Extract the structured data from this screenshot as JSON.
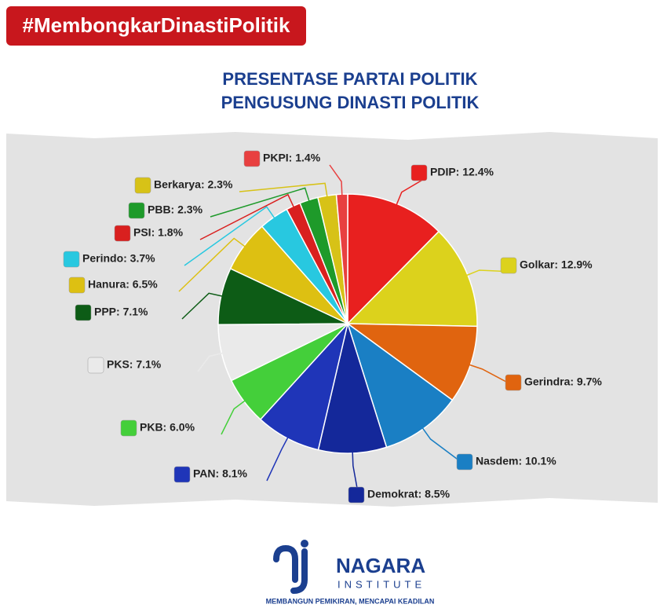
{
  "header": "#MembongkarDinastiPolitik",
  "chart_data": {
    "type": "pie",
    "title": [
      "PRESENTASE PARTAI POLITIK",
      "PENGUSUNG DINASTI POLITIK"
    ],
    "values": [
      12.4,
      12.9,
      9.7,
      10.1,
      8.5,
      8.1,
      6.0,
      7.1,
      7.1,
      6.5,
      3.7,
      1.8,
      2.3,
      2.3,
      1.4
    ],
    "value_labels": [
      "PDIP: 12.4%",
      "Golkar: 12.9%",
      "Gerindra: 9.7%",
      "Nasdem: 10.1%",
      "Demokrat: 8.5%",
      "PAN: 8.1%",
      "PKB: 6.0%",
      "PKS: 7.1%",
      "PPP: 7.1%",
      "Hanura: 6.5%",
      "Perindo: 3.7%",
      "PSI: 1.8%",
      "PBB: 2.3%",
      "Berkarya: 2.3%",
      "PKPI: 1.4%"
    ],
    "colors": [
      "#e8201f",
      "#dcd21c",
      "#e0640f",
      "#1a7fc4",
      "#14289a",
      "#1f35b8",
      "#44cf3a",
      "#eaeaea",
      "#0d5c16",
      "#ddc012",
      "#28c8e0",
      "#d9201f",
      "#1e9a2a",
      "#d7c217",
      "#e84040"
    ]
  },
  "footer": {
    "name": "NAGARA",
    "sub": "INSTITUTE",
    "tagline": "MEMBANGUN PEMIKIRAN, MENCAPAI KEADILAN"
  }
}
